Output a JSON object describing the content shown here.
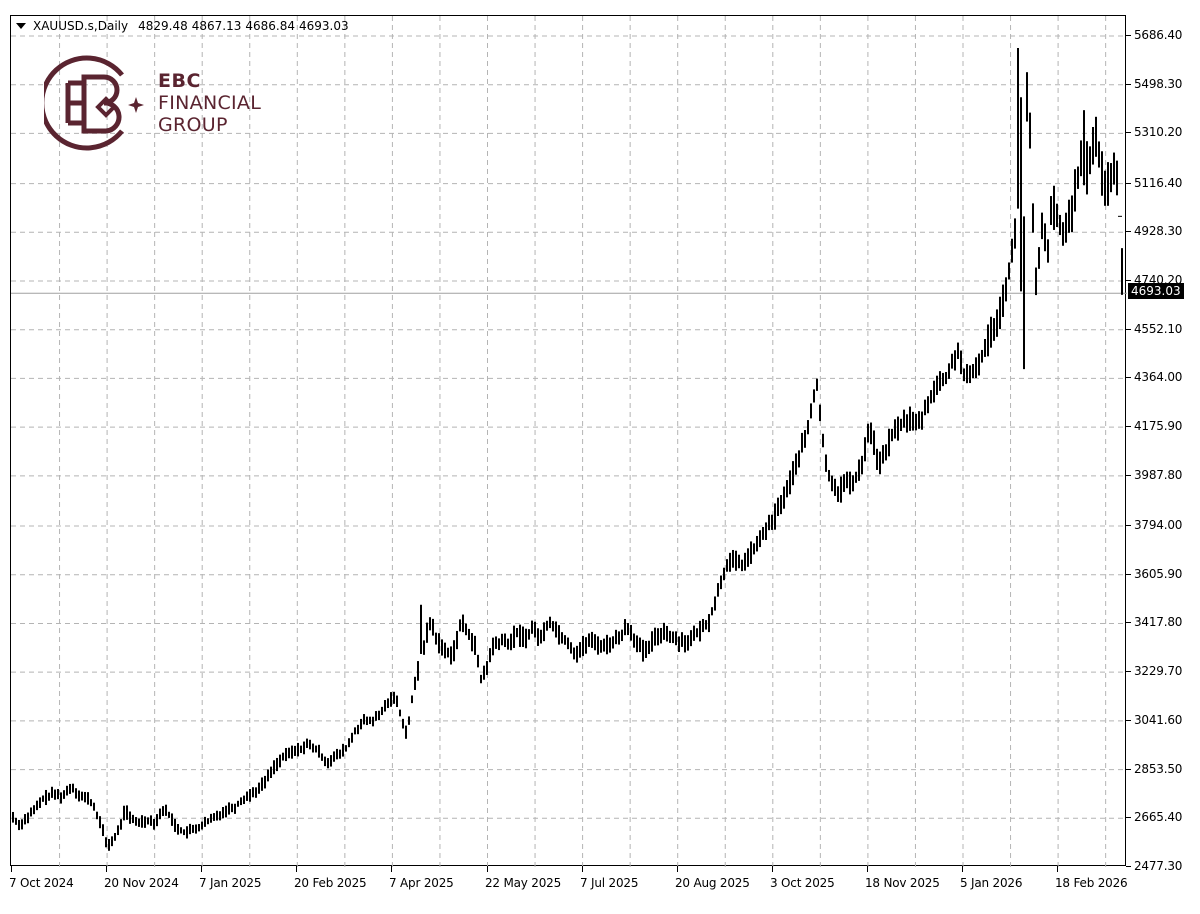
{
  "header": {
    "symbol": "XAUUSD.s,Daily",
    "open": "4829.48",
    "high": "4867.13",
    "low": "4686.84",
    "close": "4693.03"
  },
  "logo": {
    "line1": "EBC",
    "line2": "FINANCIAL",
    "line3": "GROUP",
    "color": "#5a2430"
  },
  "current_price_label": "4693.03",
  "y_axis": {
    "labels": [
      "5686.40",
      "5498.30",
      "5310.20",
      "5116.40",
      "4928.30",
      "4740.20",
      "4552.10",
      "4364.00",
      "4175.90",
      "3987.80",
      "3794.00",
      "3605.90",
      "3417.80",
      "3229.70",
      "3041.60",
      "2853.50",
      "2665.40",
      "2477.30"
    ]
  },
  "x_axis": {
    "labels": [
      "7 Oct 2024",
      "20 Nov 2024",
      "7 Jan 2025",
      "20 Feb 2025",
      "7 Apr 2025",
      "22 May 2025",
      "7 Jul 2025",
      "20 Aug 2025",
      "3 Oct 2025",
      "18 Nov 2025",
      "5 Jan 2026",
      "18 Feb 2026"
    ]
  },
  "chart_data": {
    "type": "ohlc-bar",
    "title": "XAUUSD.s, Daily",
    "last_bar": {
      "open": 4829.48,
      "high": 4867.13,
      "low": 4686.84,
      "close": 4693.03
    },
    "xlabel": "",
    "ylabel": "",
    "ylim": [
      2477.3,
      5686.4
    ],
    "grid": true,
    "x_ticks": [
      "7 Oct 2024",
      "20 Nov 2024",
      "7 Jan 2025",
      "20 Feb 2025",
      "7 Apr 2025",
      "22 May 2025",
      "7 Jul 2025",
      "20 Aug 2025",
      "3 Oct 2025",
      "18 Nov 2025",
      "5 Jan 2026",
      "18 Feb 2026"
    ],
    "y_ticks": [
      5686.4,
      5498.3,
      5310.2,
      5116.4,
      4928.3,
      4740.2,
      4552.1,
      4364.0,
      4175.9,
      3987.8,
      3794.0,
      3605.9,
      3417.8,
      3229.7,
      3041.6,
      2853.5,
      2665.4,
      2477.3
    ],
    "approx_closes_at_ticks": [
      {
        "date": "7 Oct 2024",
        "close": 2650
      },
      {
        "date": "20 Nov 2024",
        "close": 2650
      },
      {
        "date": "7 Jan 2025",
        "close": 2665
      },
      {
        "date": "20 Feb 2025",
        "close": 2935
      },
      {
        "date": "7 Apr 2025",
        "close": 3000
      },
      {
        "date": "22 May 2025",
        "close": 3330
      },
      {
        "date": "7 Jul 2025",
        "close": 3340
      },
      {
        "date": "20 Aug 2025",
        "close": 3345
      },
      {
        "date": "3 Oct 2025",
        "close": 3880
      },
      {
        "date": "18 Nov 2025",
        "close": 4080
      },
      {
        "date": "5 Jan 2026",
        "close": 4450
      },
      {
        "date": "18 Feb 2026",
        "close": 4990
      }
    ],
    "key_levels": {
      "all_time_high": 5600,
      "late_oct_2025_high": 4380,
      "apr_2025_high": 3500,
      "jan_2026_spike_low": 4400,
      "last_close": 4693.03
    },
    "anchors": [
      [
        0,
        2670
      ],
      [
        6,
        2640
      ],
      [
        12,
        2660
      ],
      [
        22,
        2700
      ],
      [
        30,
        2740
      ],
      [
        40,
        2760
      ],
      [
        50,
        2750
      ],
      [
        58,
        2790
      ],
      [
        68,
        2750
      ],
      [
        76,
        2740
      ],
      [
        82,
        2700
      ],
      [
        88,
        2640
      ],
      [
        94,
        2560
      ],
      [
        100,
        2580
      ],
      [
        106,
        2620
      ],
      [
        112,
        2700
      ],
      [
        118,
        2660
      ],
      [
        126,
        2650
      ],
      [
        134,
        2660
      ],
      [
        142,
        2650
      ],
      [
        150,
        2700
      ],
      [
        156,
        2680
      ],
      [
        162,
        2640
      ],
      [
        170,
        2610
      ],
      [
        180,
        2620
      ],
      [
        190,
        2640
      ],
      [
        198,
        2660
      ],
      [
        206,
        2680
      ],
      [
        214,
        2700
      ],
      [
        222,
        2710
      ],
      [
        230,
        2740
      ],
      [
        238,
        2760
      ],
      [
        246,
        2780
      ],
      [
        254,
        2820
      ],
      [
        262,
        2870
      ],
      [
        270,
        2900
      ],
      [
        278,
        2920
      ],
      [
        286,
        2930
      ],
      [
        294,
        2950
      ],
      [
        300,
        2940
      ],
      [
        306,
        2920
      ],
      [
        314,
        2880
      ],
      [
        320,
        2900
      ],
      [
        326,
        2910
      ],
      [
        334,
        2940
      ],
      [
        342,
        3000
      ],
      [
        350,
        3040
      ],
      [
        358,
        3040
      ],
      [
        366,
        3060
      ],
      [
        374,
        3110
      ],
      [
        382,
        3140
      ],
      [
        388,
        3060
      ],
      [
        394,
        2990
      ],
      [
        400,
        3150
      ],
      [
        406,
        3250
      ],
      [
        412,
        3350
      ],
      [
        418,
        3430
      ],
      [
        424,
        3350
      ],
      [
        432,
        3310
      ],
      [
        440,
        3300
      ],
      [
        448,
        3420
      ],
      [
        456,
        3380
      ],
      [
        462,
        3330
      ],
      [
        468,
        3200
      ],
      [
        474,
        3250
      ],
      [
        480,
        3330
      ],
      [
        488,
        3350
      ],
      [
        496,
        3340
      ],
      [
        504,
        3380
      ],
      [
        512,
        3360
      ],
      [
        520,
        3400
      ],
      [
        528,
        3360
      ],
      [
        536,
        3430
      ],
      [
        542,
        3400
      ],
      [
        548,
        3370
      ],
      [
        556,
        3340
      ],
      [
        562,
        3300
      ],
      [
        568,
        3320
      ],
      [
        576,
        3350
      ],
      [
        584,
        3340
      ],
      [
        592,
        3330
      ],
      [
        600,
        3350
      ],
      [
        606,
        3360
      ],
      [
        614,
        3410
      ],
      [
        620,
        3370
      ],
      [
        626,
        3330
      ],
      [
        632,
        3300
      ],
      [
        638,
        3340
      ],
      [
        644,
        3370
      ],
      [
        652,
        3390
      ],
      [
        660,
        3360
      ],
      [
        668,
        3350
      ],
      [
        676,
        3350
      ],
      [
        684,
        3380
      ],
      [
        690,
        3400
      ],
      [
        696,
        3430
      ],
      [
        702,
        3500
      ],
      [
        708,
        3580
      ],
      [
        714,
        3650
      ],
      [
        722,
        3660
      ],
      [
        728,
        3640
      ],
      [
        734,
        3670
      ],
      [
        740,
        3700
      ],
      [
        746,
        3730
      ],
      [
        752,
        3780
      ],
      [
        758,
        3800
      ],
      [
        764,
        3850
      ],
      [
        770,
        3900
      ],
      [
        776,
        3950
      ],
      [
        782,
        4020
      ],
      [
        788,
        4090
      ],
      [
        794,
        4150
      ],
      [
        800,
        4280
      ],
      [
        804,
        4340
      ],
      [
        808,
        4200
      ],
      [
        812,
        4040
      ],
      [
        816,
        3990
      ],
      [
        820,
        3960
      ],
      [
        826,
        3920
      ],
      [
        832,
        3970
      ],
      [
        838,
        3950
      ],
      [
        844,
        3990
      ],
      [
        850,
        4050
      ],
      [
        856,
        4180
      ],
      [
        860,
        4130
      ],
      [
        864,
        4060
      ],
      [
        868,
        4030
      ],
      [
        874,
        4100
      ],
      [
        880,
        4150
      ],
      [
        886,
        4180
      ],
      [
        892,
        4200
      ],
      [
        898,
        4210
      ],
      [
        904,
        4180
      ],
      [
        910,
        4220
      ],
      [
        916,
        4280
      ],
      [
        922,
        4330
      ],
      [
        928,
        4350
      ],
      [
        934,
        4370
      ],
      [
        940,
        4430
      ],
      [
        946,
        4480
      ],
      [
        950,
        4380
      ],
      [
        956,
        4360
      ],
      [
        962,
        4400
      ],
      [
        968,
        4440
      ],
      [
        974,
        4500
      ],
      [
        980,
        4560
      ],
      [
        986,
        4610
      ],
      [
        992,
        4700
      ],
      [
        998,
        4830
      ],
      [
        1004,
        4960
      ],
      [
        1010,
        5250
      ],
      [
        1014,
        5450
      ],
      [
        1018,
        5250
      ],
      [
        1022,
        4700
      ],
      [
        1026,
        4820
      ],
      [
        1030,
        4980
      ],
      [
        1034,
        4830
      ],
      [
        1038,
        5000
      ],
      [
        1042,
        5010
      ],
      [
        1046,
        4960
      ],
      [
        1050,
        4920
      ],
      [
        1054,
        4970
      ],
      [
        1058,
        5020
      ],
      [
        1062,
        5060
      ],
      [
        1066,
        5160
      ],
      [
        1070,
        5210
      ],
      [
        1074,
        5170
      ],
      [
        1078,
        5230
      ],
      [
        1082,
        5320
      ],
      [
        1086,
        5220
      ],
      [
        1090,
        5120
      ],
      [
        1094,
        5100
      ],
      [
        1098,
        5140
      ],
      [
        1102,
        5180
      ],
      [
        1106,
        5060
      ],
      [
        1110,
        5020
      ],
      [
        1114,
        4990
      ],
      [
        1118,
        4760
      ]
    ]
  }
}
